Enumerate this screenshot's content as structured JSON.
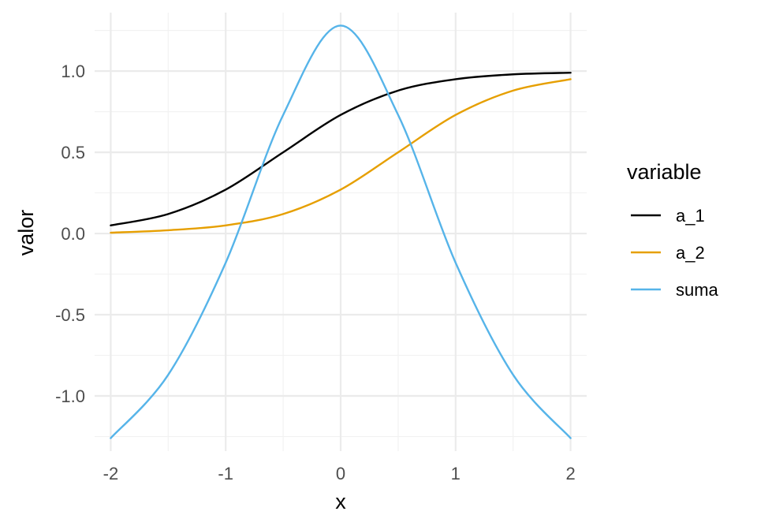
{
  "chart_data": {
    "type": "line",
    "xlabel": "x",
    "ylabel": "valor",
    "xlim": [
      -2.14,
      2.14
    ],
    "ylim": [
      -1.34,
      1.36
    ],
    "x_ticks": [
      -2,
      -1,
      0,
      1,
      2
    ],
    "x_tick_labels": [
      "-2",
      "-1",
      "0",
      "1",
      "2"
    ],
    "x_minor_ticks": [
      -1.5,
      -0.5,
      0.5,
      1.5
    ],
    "y_ticks": [
      -1.0,
      -0.5,
      0.0,
      0.5,
      1.0
    ],
    "y_tick_labels": [
      "-1.0",
      "-0.5",
      "0.0",
      "0.5",
      "1.0"
    ],
    "y_minor_ticks": [
      -1.25,
      -0.75,
      -0.25,
      0.25,
      0.75,
      1.25
    ],
    "grid": true,
    "legend": {
      "title": "variable",
      "position": "right"
    },
    "x": [
      -2,
      -1.5,
      -1,
      -0.5,
      0,
      0.5,
      1,
      1.5,
      2
    ],
    "series": [
      {
        "name": "a_1",
        "color": "#000000",
        "values": [
          0.05,
          0.12,
          0.27,
          0.5,
          0.73,
          0.88,
          0.95,
          0.98,
          0.99
        ]
      },
      {
        "name": "a_2",
        "color": "#E69F00",
        "values": [
          0.005,
          0.02,
          0.05,
          0.12,
          0.27,
          0.5,
          0.73,
          0.88,
          0.95
        ]
      },
      {
        "name": "suma",
        "color": "#56B4E9",
        "values": [
          -1.26,
          -0.87,
          -0.18,
          0.73,
          1.28,
          0.73,
          -0.18,
          -0.87,
          -1.26
        ]
      }
    ]
  }
}
